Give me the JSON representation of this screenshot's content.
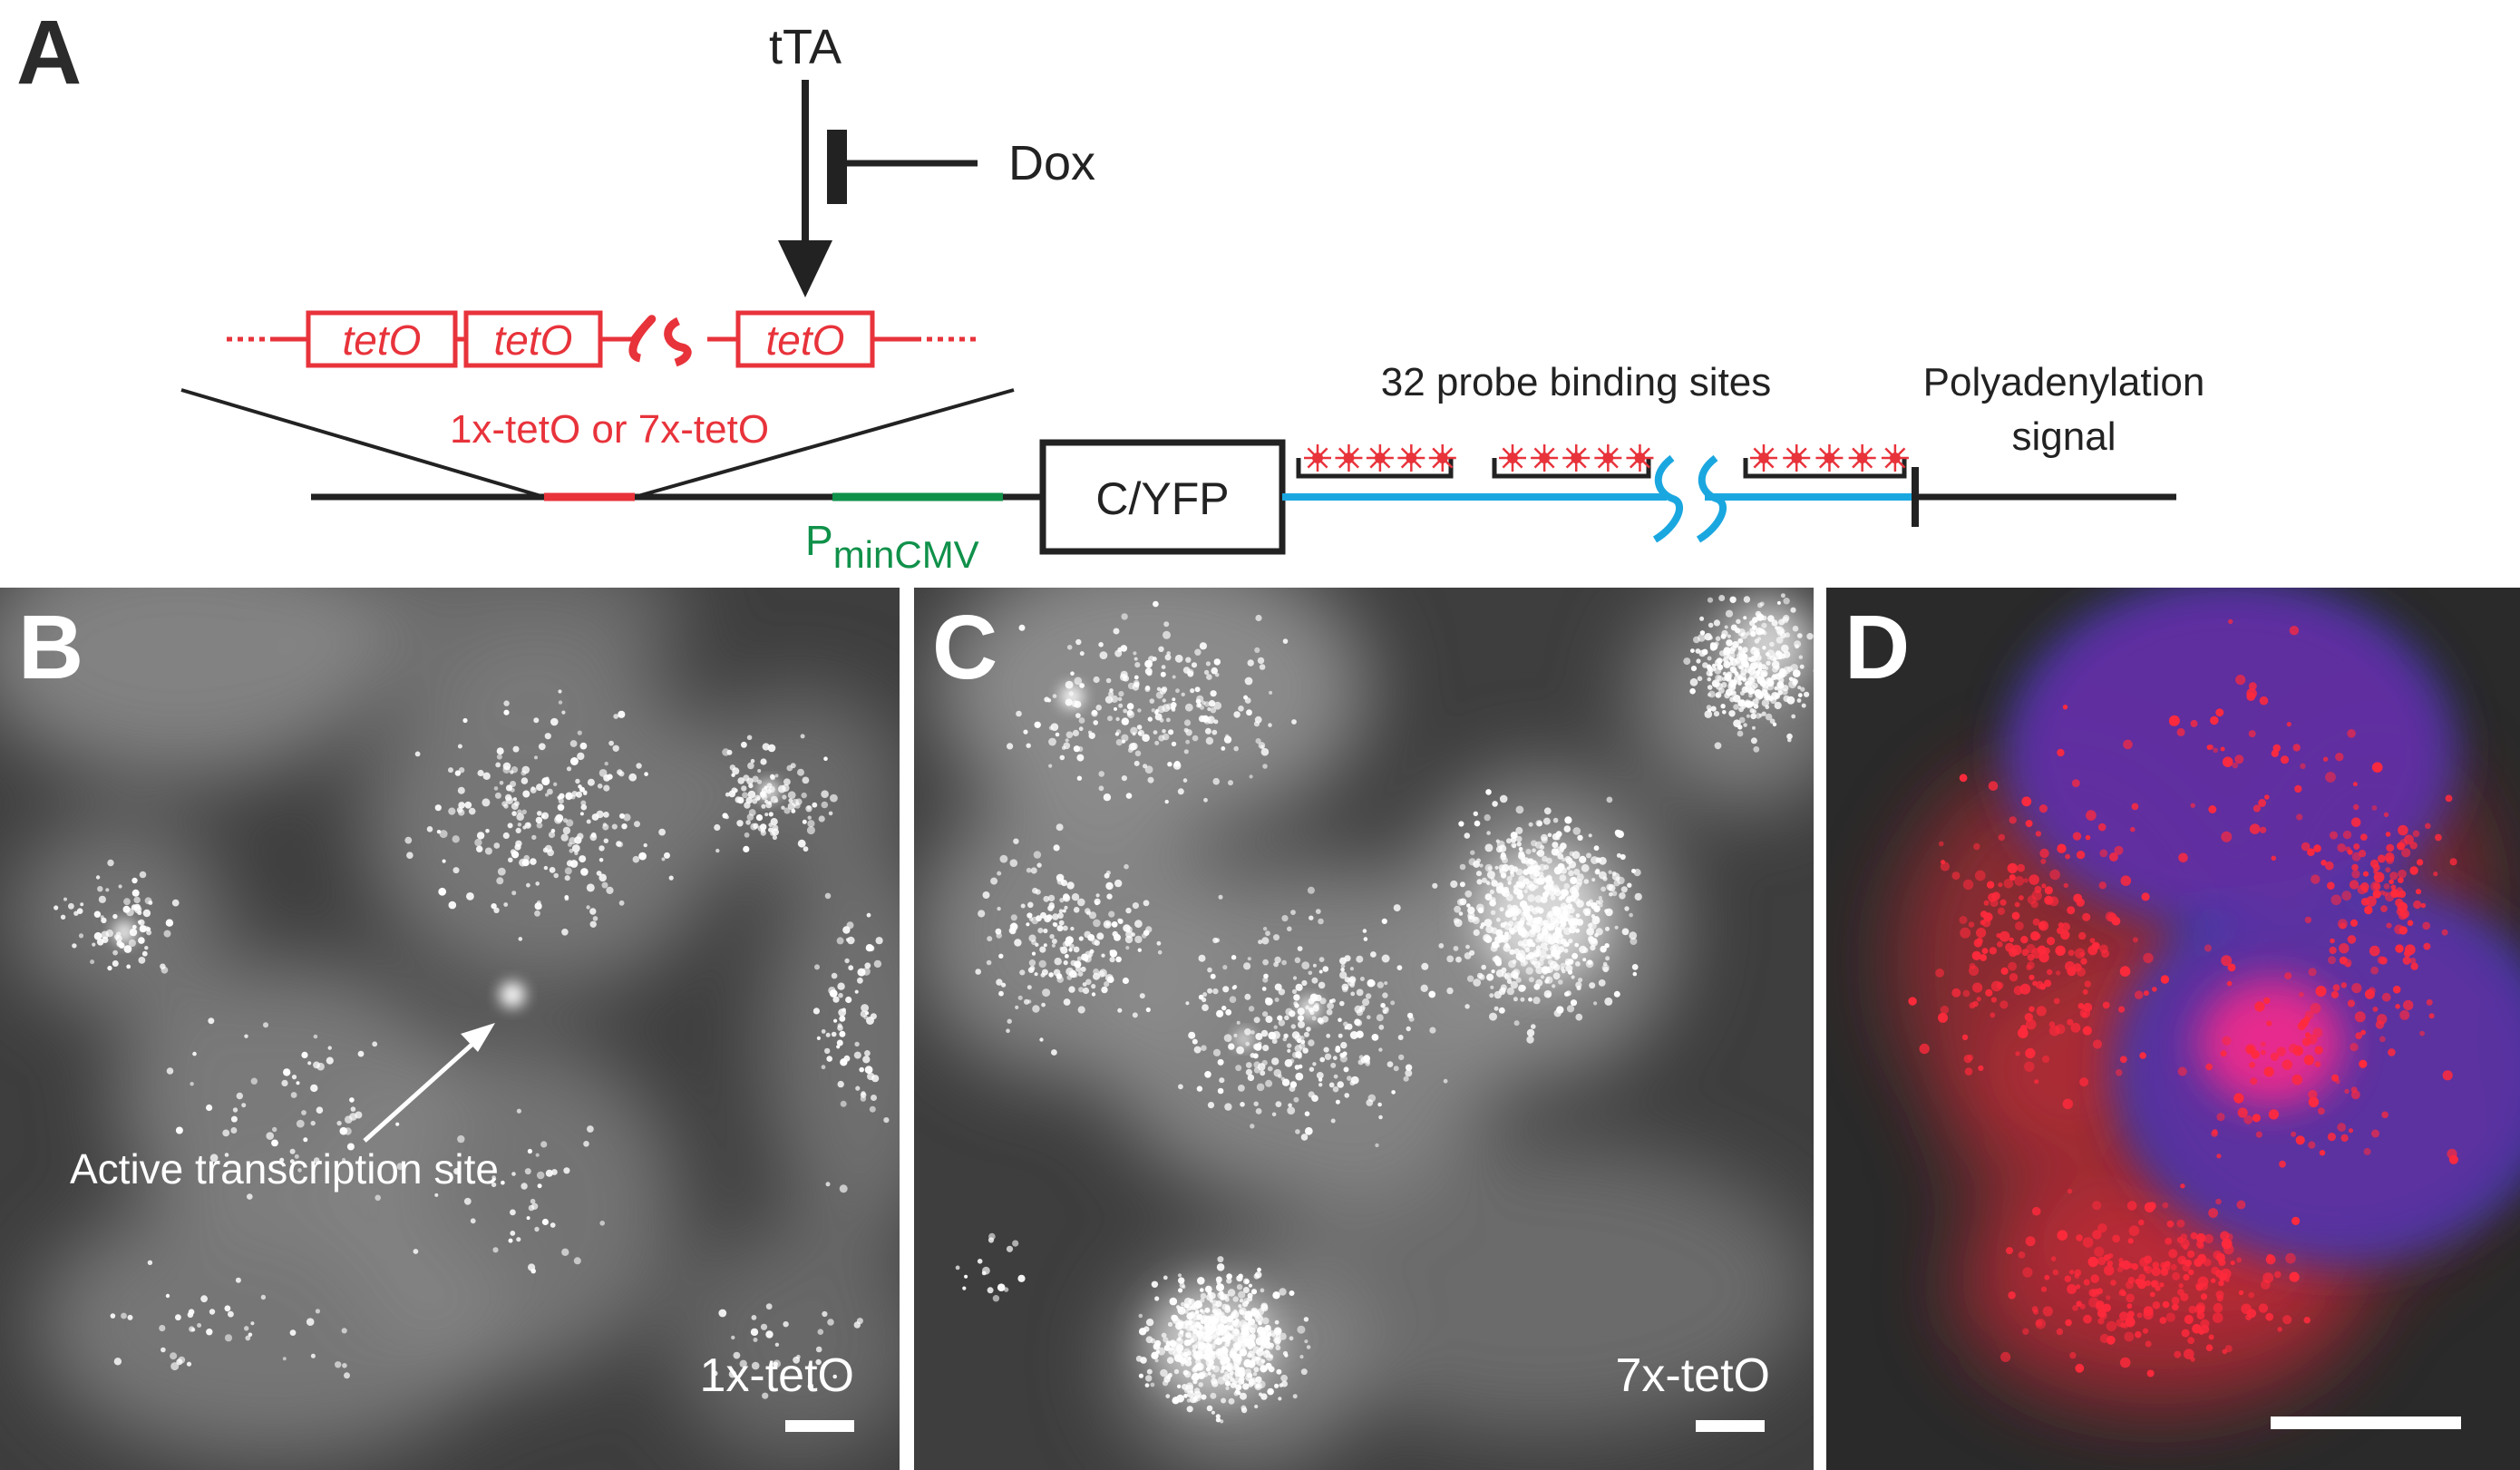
{
  "panels": {
    "a": {
      "letter": "A"
    },
    "b": {
      "letter": "B",
      "label": "1x-tetO",
      "annotation": "Active transcription site"
    },
    "c": {
      "letter": "C",
      "label": "7x-tetO"
    },
    "d": {
      "letter": "D"
    }
  },
  "diagram": {
    "activator": "tTA",
    "inhibitor": "Dox",
    "operator_label": "tetO",
    "operator_variants": "1x-tetO or 7x-tetO",
    "promoter_main": "P",
    "promoter_sub": "minCMV",
    "reporter": "C/YFP",
    "probe_sites": "32 probe binding sites",
    "polya_line1": "Polyadenylation",
    "polya_line2": "signal"
  },
  "colors": {
    "operator_red": "#e8333b",
    "promoter_green": "#10914a",
    "transcript_blue": "#1aa7e0",
    "probe_red": "#e8333b",
    "micrograph_bg": "#3e3e3e",
    "composite_bg": "#2a2a2a",
    "nucleus_blue": "#3a3aa8",
    "mrna_red": "#ff2a3c"
  }
}
